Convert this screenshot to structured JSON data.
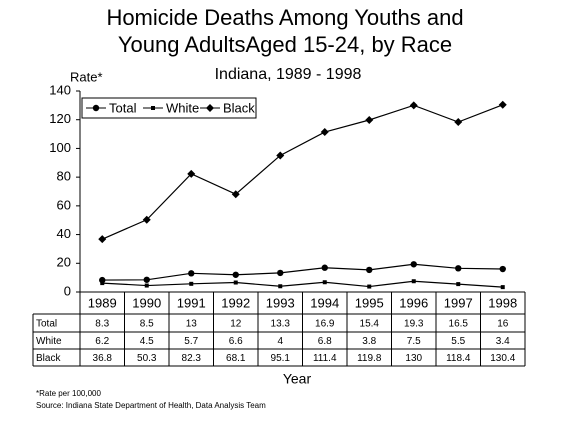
{
  "chart_data": {
    "type": "line",
    "title": [
      "Homicide Deaths Among Youths and",
      "Young AdultsAged 15-24, by Race"
    ],
    "subtitle": "Indiana, 1989 - 1998",
    "y_label": "Rate*",
    "x_label": "Year",
    "notes": [
      "*Rate per 100,000",
      "Source:  Indiana State Department of Health, Data Analysis Team"
    ],
    "categories": [
      "1989",
      "1990",
      "1991",
      "1992",
      "1993",
      "1994",
      "1995",
      "1996",
      "1997",
      "1998"
    ],
    "series": [
      {
        "name": "Total",
        "color": "#000000",
        "marker": "circle",
        "values": [
          8.3,
          8.5,
          13,
          12,
          13.3,
          16.9,
          15.4,
          19.3,
          16.5,
          16
        ]
      },
      {
        "name": "White",
        "color": "#000000",
        "marker": "square",
        "values": [
          6.2,
          4.5,
          5.7,
          6.6,
          4,
          6.8,
          3.8,
          7.5,
          5.5,
          3.4
        ]
      },
      {
        "name": "Black",
        "color": "#000000",
        "marker": "diamond",
        "values": [
          36.8,
          50.3,
          82.3,
          68.1,
          95.1,
          111.4,
          119.8,
          130,
          118.4,
          130.4
        ]
      }
    ],
    "ylim": [
      0,
      140
    ],
    "yticks": [
      0,
      20,
      40,
      60,
      80,
      100,
      120,
      140
    ],
    "grid": false,
    "legend": "top-left"
  }
}
